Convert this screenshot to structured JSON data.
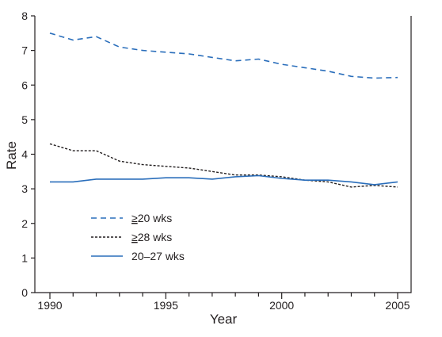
{
  "chart_data": {
    "type": "line",
    "xlabel": "Year",
    "ylabel": "Rate",
    "xlim": [
      1990,
      2005
    ],
    "ylim": [
      0,
      8
    ],
    "x_ticks": [
      1990,
      1995,
      2000,
      2005
    ],
    "y_ticks": [
      0,
      1,
      2,
      3,
      4,
      5,
      6,
      7,
      8
    ],
    "grid": false,
    "legend_position": "lower-left",
    "x": [
      1990,
      1991,
      1992,
      1993,
      1994,
      1995,
      1996,
      1997,
      1998,
      1999,
      2000,
      2001,
      2002,
      2003,
      2004,
      2005
    ],
    "series": [
      {
        "name": "≥20 wks",
        "legend_prefix": "≥",
        "legend_rest": "20 wks",
        "style": "dashed",
        "color": "#2a6ebb",
        "values": [
          7.5,
          7.3,
          7.4,
          7.1,
          7.0,
          6.95,
          6.9,
          6.8,
          6.7,
          6.75,
          6.6,
          6.5,
          6.4,
          6.25,
          6.2,
          6.22
        ]
      },
      {
        "name": "≥28 wks",
        "legend_prefix": "≥",
        "legend_rest": "28 wks",
        "style": "dotted",
        "color": "#231f20",
        "values": [
          4.3,
          4.1,
          4.1,
          3.8,
          3.7,
          3.65,
          3.6,
          3.5,
          3.4,
          3.4,
          3.35,
          3.25,
          3.2,
          3.05,
          3.1,
          3.05
        ]
      },
      {
        "name": "20–27 wks",
        "legend_prefix": "",
        "legend_rest": "20–27 wks",
        "style": "solid",
        "color": "#2a6ebb",
        "values": [
          3.2,
          3.2,
          3.28,
          3.28,
          3.28,
          3.32,
          3.32,
          3.28,
          3.35,
          3.38,
          3.3,
          3.25,
          3.25,
          3.2,
          3.12,
          3.2
        ]
      }
    ]
  }
}
